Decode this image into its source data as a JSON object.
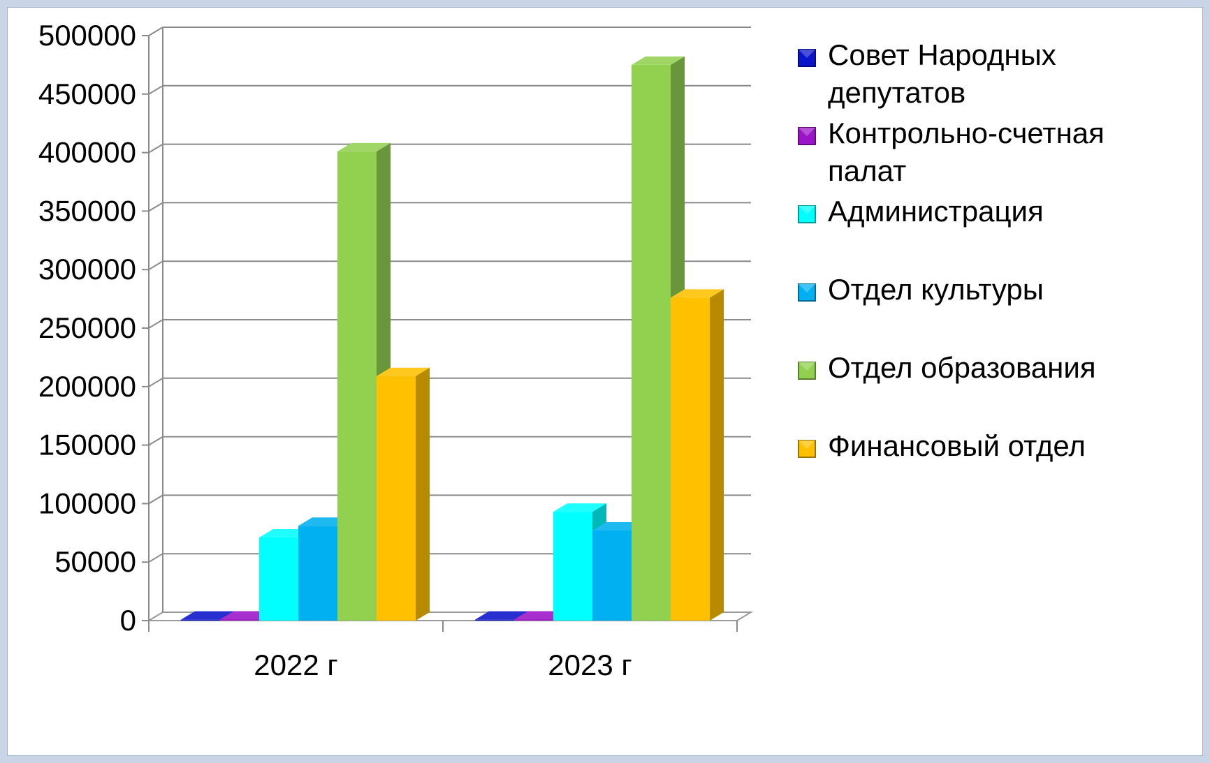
{
  "chart_data": {
    "type": "bar",
    "title": "",
    "xlabel": "",
    "ylabel": "",
    "ylim": [
      0,
      500000
    ],
    "yticks": [
      "0",
      "50000",
      "100000",
      "150000",
      "200000",
      "250000",
      "300000",
      "350000",
      "400000",
      "450000",
      "500000"
    ],
    "categories": [
      "2022 г",
      "2023 г"
    ],
    "grid": true,
    "legend_position": "right",
    "three_d": true,
    "series": [
      {
        "name": "Совет Народных депутатов",
        "legend_lines": [
          "Совет Народных",
          "депутатов"
        ],
        "color": "#0a14c8",
        "values": [
          800,
          800
        ]
      },
      {
        "name": "Контрольно-счетная палат",
        "legend_lines": [
          "Контрольно-счетная",
          "палат"
        ],
        "color": "#9b14c8",
        "values": [
          900,
          900
        ]
      },
      {
        "name": "Администрация",
        "legend_lines": [
          "Администрация"
        ],
        "color": "#00ffff",
        "values": [
          71000,
          93000
        ]
      },
      {
        "name": "Отдел культуры",
        "legend_lines": [
          "Отдел культуры"
        ],
        "color": "#00b0f0",
        "values": [
          81000,
          77000
        ]
      },
      {
        "name": "Отдел образования",
        "legend_lines": [
          "Отдел образования"
        ],
        "color": "#92d050",
        "values": [
          401000,
          475000
        ]
      },
      {
        "name": "Финансовый отдел",
        "legend_lines": [
          "Финансовый отдел"
        ],
        "color": "#ffc000",
        "values": [
          209000,
          276000
        ]
      }
    ]
  }
}
